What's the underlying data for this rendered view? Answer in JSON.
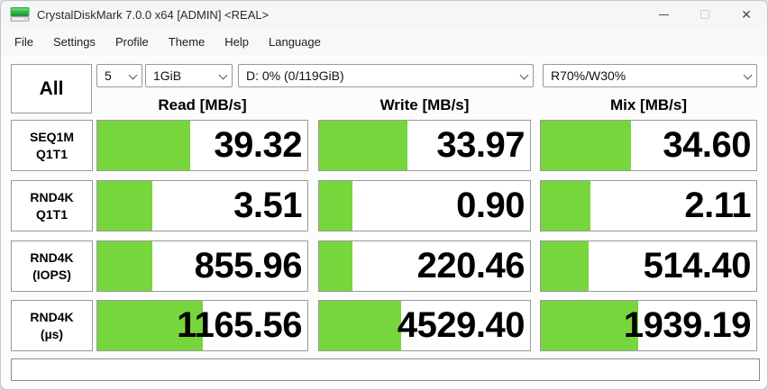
{
  "window": {
    "title": "CrystalDiskMark 7.0.0 x64 [ADMIN] <REAL>",
    "controls": {
      "minimize": "minimize",
      "maximize": "maximize",
      "close": "close"
    }
  },
  "menu": {
    "items": [
      "File",
      "Settings",
      "Profile",
      "Theme",
      "Help",
      "Language"
    ]
  },
  "controls": {
    "all_button": "All",
    "test_count": "5",
    "test_size": "1GiB",
    "target_drive": "D: 0% (0/119GiB)",
    "mix_ratio": "R70%/W30%"
  },
  "table": {
    "headers": {
      "read": "Read [MB/s]",
      "write": "Write [MB/s]",
      "mix": "Mix [MB/s]"
    },
    "rows": [
      {
        "label1": "SEQ1M",
        "label2": "Q1T1",
        "read": {
          "value": "39.32",
          "fraction": 0.44
        },
        "write": {
          "value": "33.97",
          "fraction": 0.42
        },
        "mix": {
          "value": "34.60",
          "fraction": 0.42
        }
      },
      {
        "label1": "RND4K",
        "label2": "Q1T1",
        "read": {
          "value": "3.51",
          "fraction": 0.26
        },
        "write": {
          "value": "0.90",
          "fraction": 0.16
        },
        "mix": {
          "value": "2.11",
          "fraction": 0.23
        }
      },
      {
        "label1": "RND4K",
        "label2": "(IOPS)",
        "read": {
          "value": "855.96",
          "fraction": 0.26
        },
        "write": {
          "value": "220.46",
          "fraction": 0.16
        },
        "mix": {
          "value": "514.40",
          "fraction": 0.22
        }
      },
      {
        "label1": "RND4K",
        "label2": "(µs)",
        "read": {
          "value": "1165.56",
          "fraction": 0.5
        },
        "write": {
          "value": "4529.40",
          "fraction": 0.39
        },
        "mix": {
          "value": "1939.19",
          "fraction": 0.45
        }
      }
    ]
  },
  "comment_box": {
    "value": ""
  },
  "colors": {
    "bar_green": "#77d63c",
    "cell_border": "#9a9a9a",
    "icon_green": "#2fb34a"
  }
}
